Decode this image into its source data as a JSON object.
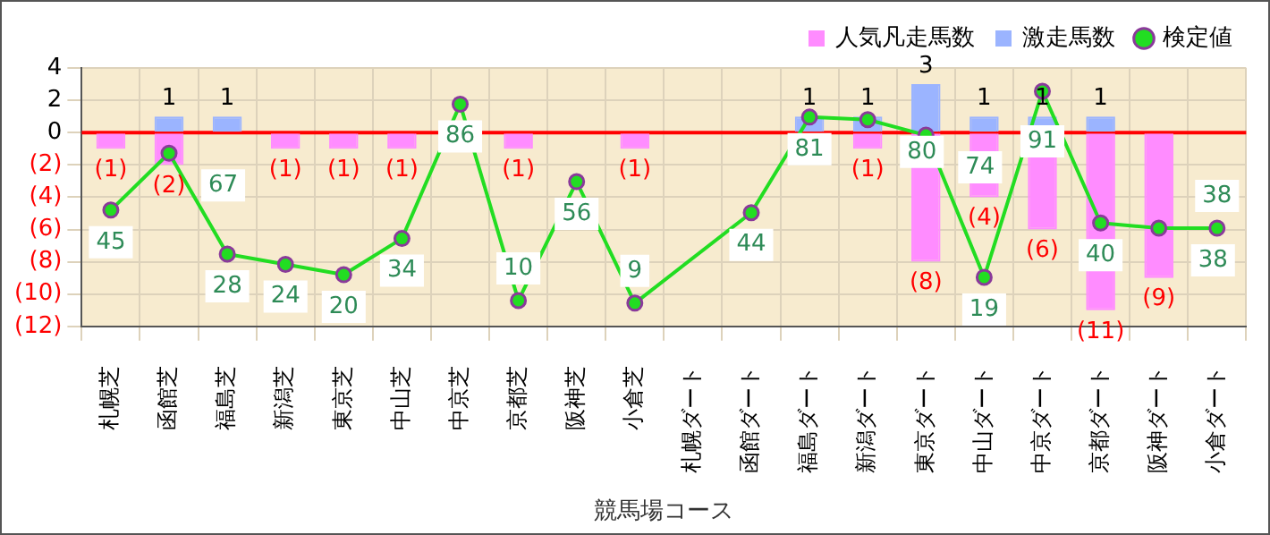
{
  "chart_data": {
    "type": "bar",
    "xlabel": "競馬場コース",
    "categories": [
      "札幌芝",
      "函館芝",
      "福島芝",
      "新潟芝",
      "東京芝",
      "中山芝",
      "中京芝",
      "京都芝",
      "阪神芝",
      "小倉芝",
      "札幌ダート",
      "函館ダート",
      "福島ダート",
      "新潟ダート",
      "東京ダート",
      "中山ダート",
      "中京ダート",
      "京都ダート",
      "阪神ダート",
      "小倉ダート"
    ],
    "series": [
      {
        "name": "人気凡走馬数",
        "color": "#ff8cff",
        "values": [
          -1,
          -2,
          0,
          -1,
          -1,
          -1,
          0,
          -1,
          0,
          -1,
          0,
          0,
          0,
          -1,
          -8,
          -4,
          -6,
          -11,
          -9,
          0
        ],
        "value_labels": [
          "(1)",
          "(2)",
          null,
          "(1)",
          "(1)",
          "(1)",
          null,
          "(1)",
          null,
          "(1)",
          null,
          null,
          null,
          "(1)",
          "(8)",
          "(4)",
          "(6)",
          "(11)",
          "(9)",
          null
        ]
      },
      {
        "name": "激走馬数",
        "color": "#9bb4ff",
        "values": [
          0,
          1,
          1,
          0,
          0,
          0,
          0,
          0,
          0,
          0,
          0,
          0,
          1,
          1,
          3,
          1,
          1,
          1,
          0,
          0
        ],
        "value_labels": [
          null,
          "1",
          "1",
          null,
          null,
          null,
          null,
          null,
          null,
          null,
          null,
          null,
          "1",
          "1",
          "3",
          "1",
          "1",
          "1",
          null,
          null
        ]
      },
      {
        "name": "検定値",
        "type": "line",
        "axis": "y2",
        "color": "#22dd22",
        "marker": "circle",
        "data_labels": true,
        "values": [
          45,
          67,
          28,
          24,
          20,
          34,
          86,
          10,
          56,
          9,
          null,
          44,
          81,
          80,
          74,
          19,
          91,
          40,
          38,
          38
        ]
      }
    ],
    "ylim": [
      -12,
      4
    ],
    "yticks": [
      4,
      2,
      0,
      {
        "value": -2,
        "label": "(2)"
      },
      {
        "value": -4,
        "label": "(4)"
      },
      {
        "value": -6,
        "label": "(6)"
      },
      {
        "value": -8,
        "label": "(8)"
      },
      {
        "value": -10,
        "label": "(10)"
      },
      {
        "value": -12,
        "label": "(12)"
      }
    ],
    "y2lim": [
      0,
      100
    ],
    "ref_lines": [
      {
        "axis": "y",
        "value": 0,
        "color": "#ff0000"
      }
    ],
    "grid": true,
    "legend": "top"
  }
}
